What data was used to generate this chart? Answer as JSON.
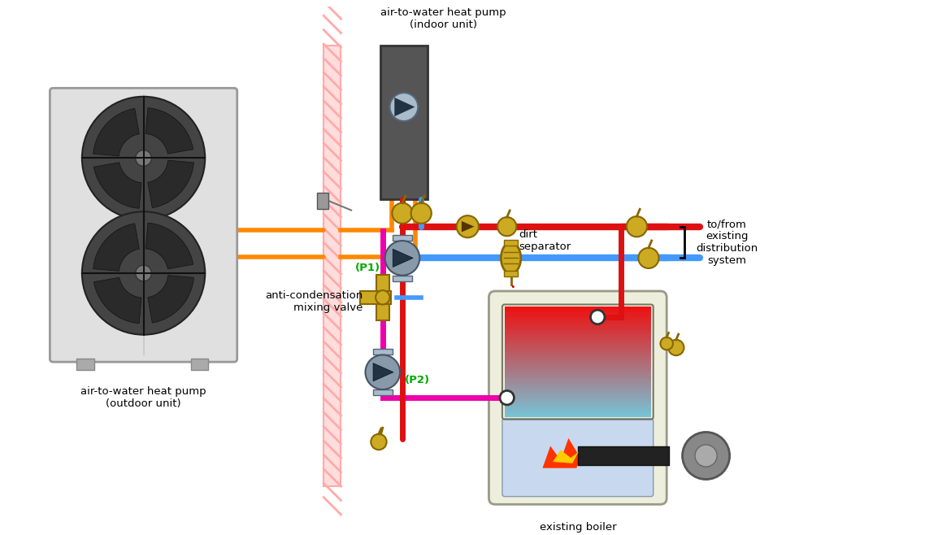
{
  "bg_color": "#ffffff",
  "fig_width": 11.7,
  "fig_height": 6.58,
  "labels": {
    "outdoor_unit": "air-to-water heat pump\n(outdoor unit)",
    "indoor_unit": "air-to-water heat pump\n(indoor unit)",
    "dirt_separator": "dirt\nseparator",
    "anti_condensation": "anti-condensation\nmixing valve",
    "existing_boiler": "existing boiler",
    "distribution": "to/from\nexisting\ndistribution\nsystem",
    "p1": "(P1)",
    "p2": "(P2)"
  },
  "colors": {
    "red_pipe": "#dd1111",
    "blue_pipe": "#4499ff",
    "magenta_pipe": "#ee00aa",
    "orange_pipe": "#ff8800",
    "outdoor_box": "#e8e8e8",
    "outdoor_border": "#aaaaaa",
    "indoor_box": "#555555",
    "indoor_border": "#333333",
    "boiler_outer": "#e8e8cc",
    "boiler_border": "#aaaaaa",
    "boiler_red": "#ee1111",
    "boiler_pink": "#ffaaaa",
    "boiler_blue": "#aabbdd",
    "valve_gold": "#ccaa22",
    "valve_border": "#886600",
    "pump_body": "#778899",
    "pump_border": "#334455",
    "fan_dark": "#333333",
    "p_label_color": "#00aa00",
    "wall_fill": "#ffdddd",
    "wall_stripe": "#ffaaaa",
    "burner_dark": "#333333",
    "flame_red": "#ff3300",
    "flame_yellow": "#ffcc00"
  }
}
